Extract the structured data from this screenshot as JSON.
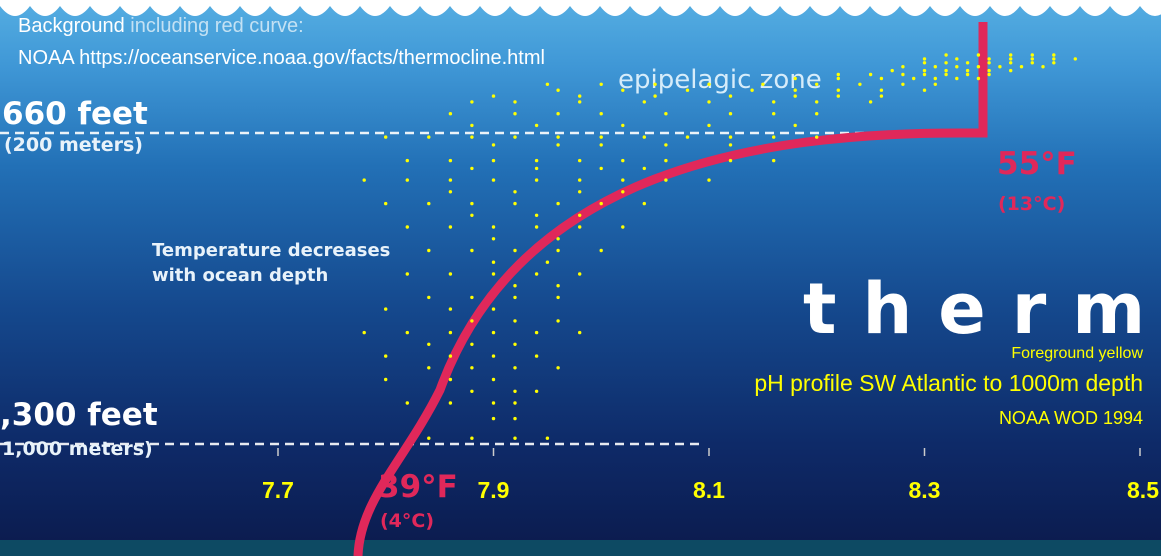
{
  "credits": {
    "line1_highlight": "Background",
    "line1_rest": " including red curve:",
    "line2": "NOAA https://oceanservice.noaa.gov/facts/thermocline.html"
  },
  "background": {
    "zone_label": "epipelagic zone",
    "depth_top_feet": "660 feet",
    "depth_top_meters": "(200 meters)",
    "depth_bottom_feet": ",300 feet",
    "depth_bottom_meters": "1,000 meters)",
    "description_line1": "Temperature decreases",
    "description_line2": "with ocean depth",
    "temp_top_f": "55°F",
    "temp_top_c": "(13°C)",
    "temp_bottom_f": "39°F",
    "temp_bottom_c": "(4°C)",
    "big_word": "therm"
  },
  "foreground": {
    "tag": "Foreground yellow",
    "title": "pH profile SW Atlantic to 1000m depth",
    "source": "NOAA WOD 1994"
  },
  "colors": {
    "sky_top": "#4fa9e0",
    "ocean_mid": "#1d5fa5",
    "ocean_deep": "#0c1f55",
    "curve": "#e0285a",
    "points": "#ffff00",
    "band": "#0d4a63"
  },
  "chart_data": {
    "type": "scatter",
    "xlabel": "",
    "ylabel": "",
    "x_ticks": [
      "7.7",
      "7.9",
      "8.1",
      "8.3",
      "8.5"
    ],
    "xlim": [
      7.7,
      8.5
    ],
    "ylim": [
      1000,
      0
    ],
    "series": [
      {
        "points": [
          [
            8.32,
            0
          ],
          [
            8.35,
            0
          ],
          [
            8.38,
            0
          ],
          [
            8.4,
            0
          ],
          [
            8.42,
            0
          ],
          [
            8.3,
            10
          ],
          [
            8.33,
            10
          ],
          [
            8.36,
            10
          ],
          [
            8.38,
            10
          ],
          [
            8.4,
            10
          ],
          [
            8.42,
            10
          ],
          [
            8.44,
            10
          ],
          [
            8.3,
            20
          ],
          [
            8.32,
            20
          ],
          [
            8.34,
            20
          ],
          [
            8.36,
            20
          ],
          [
            8.38,
            20
          ],
          [
            8.4,
            20
          ],
          [
            8.42,
            20
          ],
          [
            8.28,
            30
          ],
          [
            8.31,
            30
          ],
          [
            8.33,
            30
          ],
          [
            8.35,
            30
          ],
          [
            8.37,
            30
          ],
          [
            8.39,
            30
          ],
          [
            8.41,
            30
          ],
          [
            8.27,
            40
          ],
          [
            8.3,
            40
          ],
          [
            8.32,
            40
          ],
          [
            8.34,
            40
          ],
          [
            8.36,
            40
          ],
          [
            8.38,
            40
          ],
          [
            8.22,
            50
          ],
          [
            8.25,
            50
          ],
          [
            8.28,
            50
          ],
          [
            8.3,
            50
          ],
          [
            8.32,
            50
          ],
          [
            8.34,
            50
          ],
          [
            8.36,
            50
          ],
          [
            8.18,
            60
          ],
          [
            8.22,
            60
          ],
          [
            8.26,
            60
          ],
          [
            8.29,
            60
          ],
          [
            8.31,
            60
          ],
          [
            8.33,
            60
          ],
          [
            8.35,
            60
          ],
          [
            7.95,
            75
          ],
          [
            8.0,
            75
          ],
          [
            8.05,
            75
          ],
          [
            8.1,
            75
          ],
          [
            8.15,
            75
          ],
          [
            8.2,
            75
          ],
          [
            8.24,
            75
          ],
          [
            8.28,
            75
          ],
          [
            8.31,
            75
          ],
          [
            7.96,
            90
          ],
          [
            8.02,
            90
          ],
          [
            8.08,
            90
          ],
          [
            8.14,
            90
          ],
          [
            8.18,
            90
          ],
          [
            8.22,
            90
          ],
          [
            8.26,
            90
          ],
          [
            8.3,
            90
          ],
          [
            7.9,
            105
          ],
          [
            7.98,
            105
          ],
          [
            8.05,
            105
          ],
          [
            8.12,
            105
          ],
          [
            8.18,
            105
          ],
          [
            8.22,
            105
          ],
          [
            8.26,
            105
          ],
          [
            7.88,
            120
          ],
          [
            7.92,
            120
          ],
          [
            7.98,
            120
          ],
          [
            8.04,
            120
          ],
          [
            8.1,
            120
          ],
          [
            8.16,
            120
          ],
          [
            8.2,
            120
          ],
          [
            8.25,
            120
          ],
          [
            7.86,
            150
          ],
          [
            7.92,
            150
          ],
          [
            7.96,
            150
          ],
          [
            8.0,
            150
          ],
          [
            8.06,
            150
          ],
          [
            8.12,
            150
          ],
          [
            8.16,
            150
          ],
          [
            8.2,
            150
          ],
          [
            7.88,
            180
          ],
          [
            7.94,
            180
          ],
          [
            8.02,
            180
          ],
          [
            8.1,
            180
          ],
          [
            8.18,
            180
          ],
          [
            7.8,
            210
          ],
          [
            7.84,
            210
          ],
          [
            7.88,
            210
          ],
          [
            7.92,
            210
          ],
          [
            7.96,
            210
          ],
          [
            8.0,
            210
          ],
          [
            8.04,
            210
          ],
          [
            8.08,
            210
          ],
          [
            8.12,
            210
          ],
          [
            8.16,
            210
          ],
          [
            8.2,
            210
          ],
          [
            7.9,
            230
          ],
          [
            7.96,
            230
          ],
          [
            8.0,
            230
          ],
          [
            8.06,
            230
          ],
          [
            8.12,
            230
          ],
          [
            7.82,
            270
          ],
          [
            7.86,
            270
          ],
          [
            7.9,
            270
          ],
          [
            7.94,
            270
          ],
          [
            7.98,
            270
          ],
          [
            8.02,
            270
          ],
          [
            8.06,
            270
          ],
          [
            8.12,
            270
          ],
          [
            8.16,
            270
          ],
          [
            7.88,
            290
          ],
          [
            7.94,
            290
          ],
          [
            8.0,
            290
          ],
          [
            8.04,
            290
          ],
          [
            7.78,
            320
          ],
          [
            7.82,
            320
          ],
          [
            7.86,
            320
          ],
          [
            7.9,
            320
          ],
          [
            7.94,
            320
          ],
          [
            7.98,
            320
          ],
          [
            8.02,
            320
          ],
          [
            8.06,
            320
          ],
          [
            8.1,
            320
          ],
          [
            7.86,
            350
          ],
          [
            7.92,
            350
          ],
          [
            7.98,
            350
          ],
          [
            8.02,
            350
          ],
          [
            7.8,
            380
          ],
          [
            7.84,
            380
          ],
          [
            7.88,
            380
          ],
          [
            7.92,
            380
          ],
          [
            7.96,
            380
          ],
          [
            8.0,
            380
          ],
          [
            8.04,
            380
          ],
          [
            7.88,
            410
          ],
          [
            7.94,
            410
          ],
          [
            7.98,
            410
          ],
          [
            7.82,
            440
          ],
          [
            7.86,
            440
          ],
          [
            7.9,
            440
          ],
          [
            7.94,
            440
          ],
          [
            7.98,
            440
          ],
          [
            8.02,
            440
          ],
          [
            7.9,
            470
          ],
          [
            7.96,
            470
          ],
          [
            7.84,
            500
          ],
          [
            7.88,
            500
          ],
          [
            7.92,
            500
          ],
          [
            7.96,
            500
          ],
          [
            8.0,
            500
          ],
          [
            7.9,
            530
          ],
          [
            7.95,
            530
          ],
          [
            7.82,
            560
          ],
          [
            7.86,
            560
          ],
          [
            7.9,
            560
          ],
          [
            7.94,
            560
          ],
          [
            7.98,
            560
          ],
          [
            7.92,
            590
          ],
          [
            7.96,
            590
          ],
          [
            7.84,
            620
          ],
          [
            7.88,
            620
          ],
          [
            7.92,
            620
          ],
          [
            7.96,
            620
          ],
          [
            7.8,
            650
          ],
          [
            7.86,
            650
          ],
          [
            7.9,
            650
          ],
          [
            7.88,
            680
          ],
          [
            7.92,
            680
          ],
          [
            7.96,
            680
          ],
          [
            7.78,
            710
          ],
          [
            7.82,
            710
          ],
          [
            7.86,
            710
          ],
          [
            7.9,
            710
          ],
          [
            7.94,
            710
          ],
          [
            7.98,
            710
          ],
          [
            7.84,
            740
          ],
          [
            7.88,
            740
          ],
          [
            7.92,
            740
          ],
          [
            7.8,
            770
          ],
          [
            7.86,
            770
          ],
          [
            7.9,
            770
          ],
          [
            7.94,
            770
          ],
          [
            7.84,
            800
          ],
          [
            7.88,
            800
          ],
          [
            7.92,
            800
          ],
          [
            7.96,
            800
          ],
          [
            7.8,
            830
          ],
          [
            7.86,
            830
          ],
          [
            7.9,
            830
          ],
          [
            7.88,
            860
          ],
          [
            7.92,
            860
          ],
          [
            7.94,
            860
          ],
          [
            7.82,
            890
          ],
          [
            7.86,
            890
          ],
          [
            7.9,
            890
          ],
          [
            7.92,
            890
          ],
          [
            7.9,
            930
          ],
          [
            7.92,
            930
          ],
          [
            7.84,
            980
          ],
          [
            7.88,
            980
          ],
          [
            7.92,
            980
          ],
          [
            7.95,
            980
          ]
        ]
      }
    ]
  }
}
